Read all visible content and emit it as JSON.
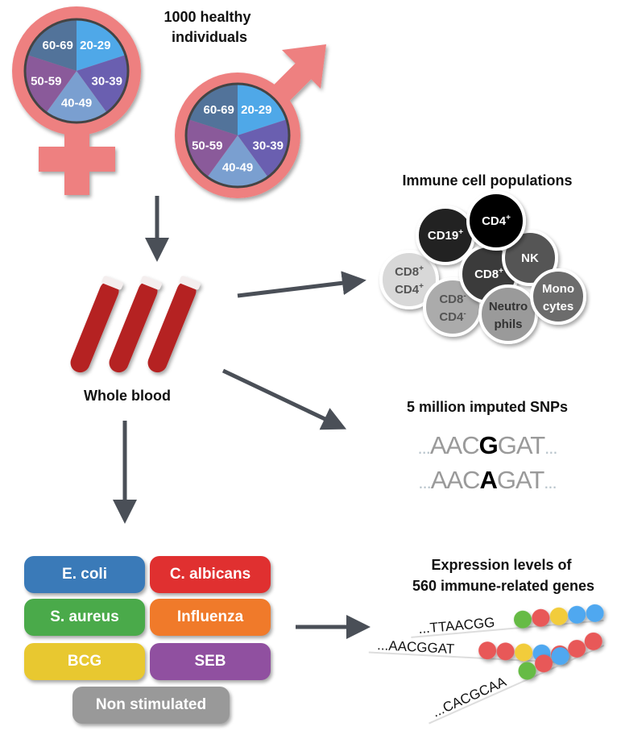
{
  "title_individuals": "1000 healthy individuals",
  "title_individuals_lines": [
    "1000 healthy",
    "individuals"
  ],
  "age_groups": [
    "20-29",
    "30-39",
    "40-49",
    "50-59",
    "60-69"
  ],
  "age_colors": [
    "#4fa8e8",
    "#6a5fb0",
    "#7a9fd0",
    "#8a5a9a",
    "#52739a"
  ],
  "sex_symbol_color": "#ee8080",
  "arrow_color": "#4a4f57",
  "whole_blood_label": "Whole blood",
  "immune_cells": {
    "title": "Immune cell populations",
    "cells": [
      {
        "label": [
          "CD8",
          "CD4"
        ],
        "sup": [
          "+",
          "+"
        ],
        "color": "#d8d8d8",
        "text": "#555555"
      },
      {
        "label": [
          "CD8",
          "CD4"
        ],
        "sup": [
          "-",
          "-"
        ],
        "color": "#ababab",
        "text": "#555555"
      },
      {
        "label": [
          "CD19"
        ],
        "sup": [
          "+"
        ],
        "color": "#222222",
        "text": "#ffffff"
      },
      {
        "label": [
          "CD8"
        ],
        "sup": [
          "+"
        ],
        "color": "#3a3a3a",
        "text": "#ffffff"
      },
      {
        "label": [
          "NK"
        ],
        "sup": [
          ""
        ],
        "color": "#555555",
        "text": "#ffffff"
      },
      {
        "label": [
          "CD4"
        ],
        "sup": [
          "+"
        ],
        "color": "#050505",
        "text": "#ffffff"
      },
      {
        "label": [
          "Neutro",
          "phils"
        ],
        "sup": [
          "",
          ""
        ],
        "color": "#9a9a9a",
        "text": "#333333"
      },
      {
        "label": [
          "Mono",
          "cytes"
        ],
        "sup": [
          "",
          ""
        ],
        "color": "#6c6c6c",
        "text": "#ffffff"
      }
    ]
  },
  "snps": {
    "title": "5 million imputed SNPs",
    "rows": [
      {
        "prefix": "...",
        "before": "AAC",
        "allele": "G",
        "after": "GAT",
        "suffix": "..."
      },
      {
        "prefix": "...",
        "before": "AAC",
        "allele": "A",
        "after": "GAT",
        "suffix": "..."
      }
    ]
  },
  "stimuli": [
    {
      "label": "E. coli",
      "color": "#3a7ab8"
    },
    {
      "label": "C. albicans",
      "color": "#e03030"
    },
    {
      "label": "S. aureus",
      "color": "#4aaa4a"
    },
    {
      "label": "Influenza",
      "color": "#f07a2a"
    },
    {
      "label": "BCG",
      "color": "#e8c830"
    },
    {
      "label": "SEB",
      "color": "#9050a0"
    },
    {
      "label": "Non stimulated",
      "color": "#999999"
    }
  ],
  "expression": {
    "title_lines": [
      "Expression levels of",
      "560 immune-related genes"
    ],
    "sequences": [
      {
        "text": "...TTAACGG",
        "dots": [
          "green",
          "red",
          "yellow",
          "blue",
          "blue"
        ]
      },
      {
        "text": "...AACGGAT",
        "dots": [
          "red",
          "red",
          "yellow",
          "blue",
          "red"
        ]
      },
      {
        "text": "...CACGCAA",
        "dots": [
          "green",
          "red",
          "blue",
          "red",
          "red"
        ]
      }
    ],
    "dot_colors": {
      "green": "#66bb44",
      "red": "#e85858",
      "yellow": "#f2cc3a",
      "blue": "#4fa8f0"
    }
  }
}
